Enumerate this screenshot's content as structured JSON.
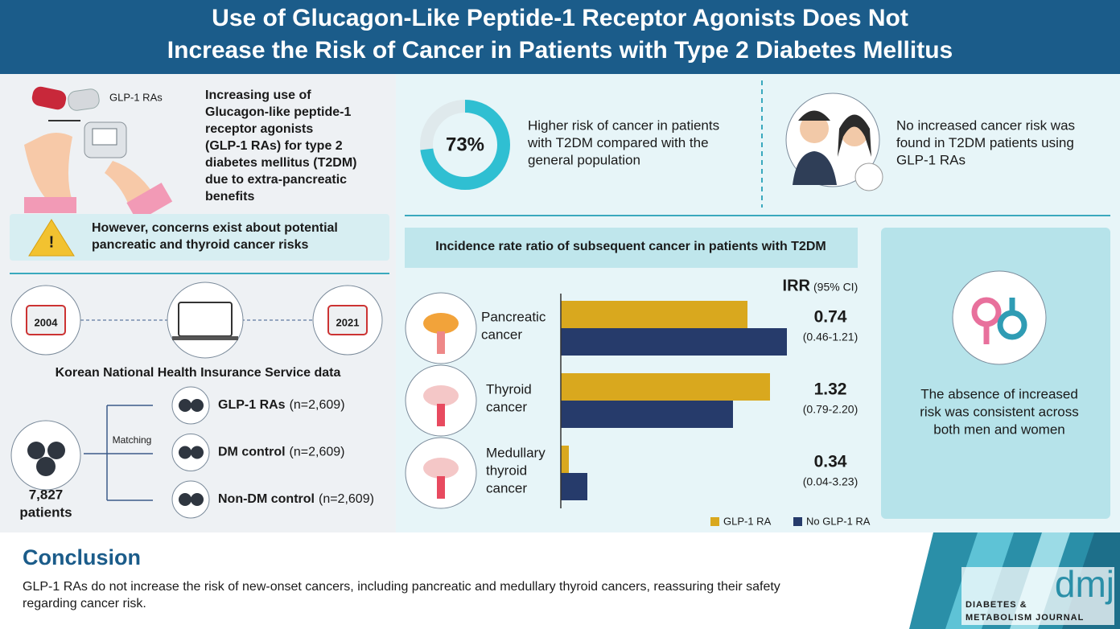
{
  "header": {
    "title": [
      "Use of Glucagon-Like Peptide-1 Receptor Agonists Does Not",
      "Increase the Risk of Cancer in Patients with Type 2 Diabetes Mellitus"
    ]
  },
  "background": {
    "drug_label": "GLP-1 RAs",
    "text": [
      "Increasing use of",
      "Glucagon-like peptide-1",
      "receptor agonists",
      "(GLP-1 RAs) for type 2",
      "diabetes mellitus (T2DM)",
      "due to extra-pancreatic",
      "benefits"
    ],
    "concern": [
      "However, concerns exist about potential",
      "pancreatic and thyroid cancer risks"
    ]
  },
  "study": {
    "start_year": "2004",
    "end_year": "2021",
    "source": "Korean National Health Insurance Service data",
    "total": "7,827",
    "total_label": "patients",
    "matching": "Matching",
    "groups": [
      {
        "name": "GLP-1 RAs",
        "n": "(n=2,609)"
      },
      {
        "name": "DM control",
        "n": "(n=2,609)"
      },
      {
        "name": "Non-DM control",
        "n": "(n=2,609)"
      }
    ]
  },
  "risk": {
    "stat": {
      "value": 73,
      "label": "73%"
    },
    "text": [
      "Higher risk of cancer in patients",
      "with T2DM compared with the",
      "general population"
    ]
  },
  "finding": {
    "text": [
      "No increased cancer risk was",
      "found in T2DM patients using",
      "GLP-1 RAs"
    ]
  },
  "chart": {
    "title": "Incidence rate ratio of subsequent cancer in patients with T2DM",
    "irr_label": "IRR",
    "ci_label": "(95% CI)",
    "categories": [
      [
        "Pancreatic",
        "cancer"
      ],
      [
        "Thyroid",
        "cancer"
      ],
      [
        "Medullary",
        "thyroid",
        "cancer"
      ]
    ],
    "series": [
      {
        "name": "GLP-1 RA",
        "color": "#d9a81e",
        "values": [
          232,
          260,
          10
        ]
      },
      {
        "name": "No GLP-1 RA",
        "color": "#263b6b",
        "values": [
          281,
          214,
          33
        ]
      }
    ],
    "irr": [
      "0.74",
      "1.32",
      "0.34"
    ],
    "ci": [
      "(0.46-1.21)",
      "(0.79-2.20)",
      "(0.04-3.23)"
    ]
  },
  "sex": {
    "text": [
      "The absence of increased",
      "risk was consistent across",
      "both men and women"
    ]
  },
  "conclusion": {
    "heading": "Conclusion",
    "text": [
      "GLP-1 RAs do not increase the risk of new-onset cancers, including pancreatic and medullary thyroid cancers, reassuring their safety",
      "regarding cancer risk."
    ]
  },
  "journal": {
    "logo": "dmj",
    "name": [
      "DIABETES &",
      "METABOLISM JOURNAL"
    ]
  }
}
